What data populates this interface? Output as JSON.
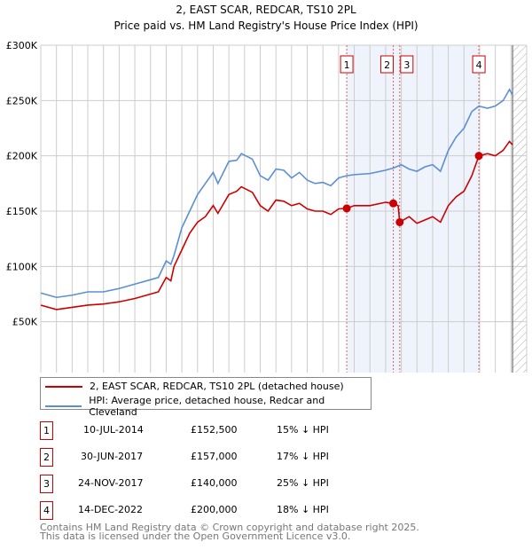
{
  "chart_data": {
    "type": "line",
    "title": "2, EAST SCAR, REDCAR, TS10 2PL",
    "subtitle": "Price paid vs. HM Land Registry's House Price Index (HPI)",
    "xlim": [
      1995,
      2026
    ],
    "ylim": [
      0,
      300000
    ],
    "y_ticks": [
      {
        "v": 0,
        "label": "£0"
      },
      {
        "v": 50000,
        "label": "£50K"
      },
      {
        "v": 100000,
        "label": "£100K"
      },
      {
        "v": 150000,
        "label": "£150K"
      },
      {
        "v": 200000,
        "label": "£200K"
      },
      {
        "v": 250000,
        "label": "£250K"
      },
      {
        "v": 300000,
        "label": "£300K"
      }
    ],
    "x_ticks": [
      "1995",
      "1996",
      "1997",
      "1998",
      "1999",
      "2000",
      "2001",
      "2002",
      "2003",
      "2004",
      "2005",
      "2006",
      "2007",
      "2008",
      "2009",
      "2010",
      "2011",
      "2012",
      "2013",
      "2014",
      "2015",
      "2016",
      "2017",
      "2018",
      "2019",
      "2020",
      "2021",
      "2022",
      "2023",
      "2024",
      "2025",
      "2026"
    ],
    "grid": true,
    "shaded_range": [
      2014.52,
      2022.95
    ],
    "forecast_hatch_from": 2025.1,
    "series": [
      {
        "name": "2, EAST SCAR, REDCAR, TS10 2PL (detached house)",
        "color": "#cc0000",
        "x": [
          1995,
          1996,
          1997,
          1998,
          1999,
          2000,
          2001,
          2002,
          2002.5,
          2003,
          2003.3,
          2003.5,
          2004,
          2004.5,
          2005,
          2005.5,
          2006,
          2006.3,
          2007,
          2007.5,
          2007.8,
          2008.5,
          2009,
          2009.5,
          2010,
          2010.5,
          2011,
          2011.5,
          2012,
          2012.5,
          2013,
          2013.5,
          2014,
          2014.52,
          2015,
          2016,
          2017,
          2017.5,
          2017.8,
          2017.9,
          2018.5,
          2019,
          2019.5,
          2020,
          2020.5,
          2021,
          2021.5,
          2022,
          2022.5,
          2022.95,
          2023.5,
          2024,
          2024.5,
          2024.9,
          2025.1
        ],
        "y": [
          65000,
          61000,
          63000,
          65000,
          66000,
          68000,
          71000,
          75000,
          77000,
          90000,
          87000,
          100000,
          115000,
          130000,
          140000,
          145000,
          155000,
          148000,
          165000,
          168000,
          172000,
          167000,
          155000,
          150000,
          160000,
          159000,
          155000,
          157000,
          152000,
          150000,
          150000,
          147000,
          152000,
          152500,
          155000,
          155000,
          158000,
          157000,
          155000,
          140000,
          145000,
          139000,
          142000,
          145000,
          140000,
          155000,
          163000,
          168000,
          182000,
          200000,
          202000,
          200000,
          205000,
          213000,
          210000
        ]
      },
      {
        "name": "HPI: Average price, detached house, Redcar and Cleveland",
        "color": "#5b8fd4",
        "x": [
          1995,
          1996,
          1997,
          1998,
          1999,
          2000,
          2001,
          2002,
          2002.5,
          2003,
          2003.3,
          2003.5,
          2004,
          2004.5,
          2005,
          2005.5,
          2006,
          2006.3,
          2007,
          2007.5,
          2007.8,
          2008.5,
          2009,
          2009.5,
          2010,
          2010.5,
          2011,
          2011.5,
          2012,
          2012.5,
          2013,
          2013.5,
          2014,
          2014.5,
          2015,
          2016,
          2017,
          2017.5,
          2018,
          2018.5,
          2019,
          2019.5,
          2020,
          2020.5,
          2021,
          2021.5,
          2022,
          2022.5,
          2022.95,
          2023.5,
          2024,
          2024.5,
          2024.9,
          2025.1
        ],
        "y": [
          76000,
          72000,
          74000,
          77000,
          77000,
          80000,
          84000,
          88000,
          90000,
          105000,
          102000,
          110000,
          135000,
          150000,
          165000,
          175000,
          185000,
          175000,
          195000,
          196000,
          202000,
          197000,
          182000,
          178000,
          188000,
          187000,
          180000,
          185000,
          178000,
          175000,
          176000,
          173000,
          180000,
          182000,
          183000,
          184000,
          187000,
          189000,
          192000,
          188000,
          186000,
          190000,
          192000,
          186000,
          205000,
          217000,
          225000,
          240000,
          245000,
          243000,
          245000,
          250000,
          260000,
          255000
        ]
      }
    ],
    "markers": [
      {
        "id": "1",
        "x": 2014.52,
        "y": 152500
      },
      {
        "id": "2",
        "x": 2017.49,
        "y": 157000
      },
      {
        "id": "3",
        "x": 2017.9,
        "y": 140000
      },
      {
        "id": "4",
        "x": 2022.95,
        "y": 200000
      }
    ]
  },
  "legend": [
    {
      "label": "2, EAST SCAR, REDCAR, TS10 2PL (detached house)",
      "color": "#cc0000"
    },
    {
      "label": "HPI: Average price, detached house, Redcar and Cleveland",
      "color": "#5b8fd4"
    }
  ],
  "transactions": [
    {
      "num": "1",
      "date": "10-JUL-2014",
      "price": "£152,500",
      "hpi": "15% ↓ HPI"
    },
    {
      "num": "2",
      "date": "30-JUN-2017",
      "price": "£157,000",
      "hpi": "17% ↓ HPI"
    },
    {
      "num": "3",
      "date": "24-NOV-2017",
      "price": "£140,000",
      "hpi": "25% ↓ HPI"
    },
    {
      "num": "4",
      "date": "14-DEC-2022",
      "price": "£200,000",
      "hpi": "18% ↓ HPI"
    }
  ],
  "footer": {
    "line1": "Contains HM Land Registry data © Crown copyright and database right 2025.",
    "line2": "This data is licensed under the Open Government Licence v3.0."
  }
}
